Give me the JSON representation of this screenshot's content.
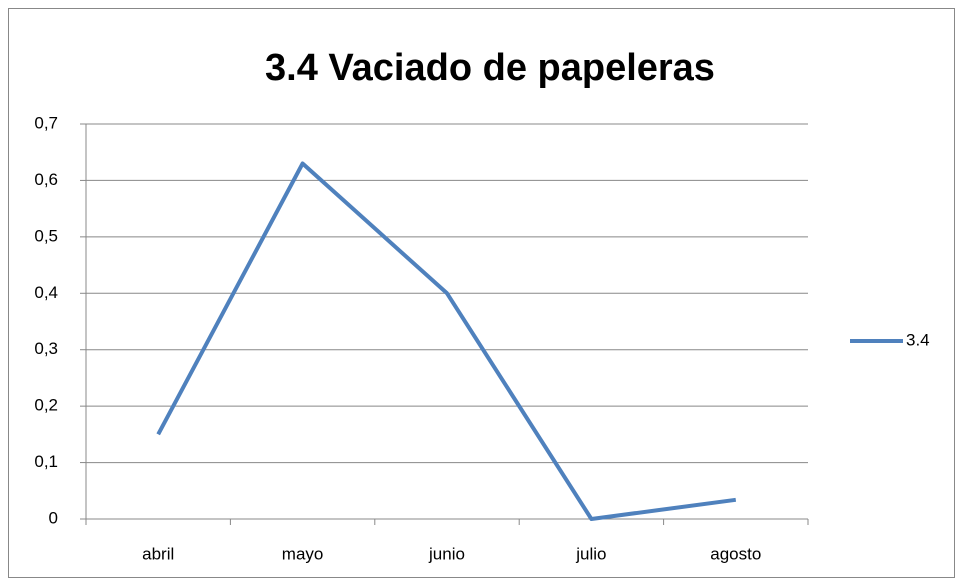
{
  "chart_data": {
    "type": "line",
    "title": "3.4 Vaciado de papeleras",
    "categories": [
      "abril",
      "mayo",
      "junio",
      "julio",
      "agosto"
    ],
    "series": [
      {
        "name": "3.4",
        "color": "#4f81bd",
        "values": [
          0.15,
          0.63,
          0.4,
          0,
          0.034
        ]
      }
    ],
    "ylim": [
      0,
      0.7
    ],
    "yticks": [
      0,
      {
        "value": 0.1,
        "label": "0,1"
      },
      {
        "value": 0.2,
        "label": "0,2"
      },
      {
        "value": 0.3,
        "label": "0,3"
      },
      {
        "value": 0.4,
        "label": "0,4"
      },
      {
        "value": 0.5,
        "label": "0,5"
      },
      {
        "value": 0.6,
        "label": "0,6"
      },
      {
        "value": 0.7,
        "label": "0,7"
      }
    ],
    "grid": true,
    "legend": "right"
  }
}
